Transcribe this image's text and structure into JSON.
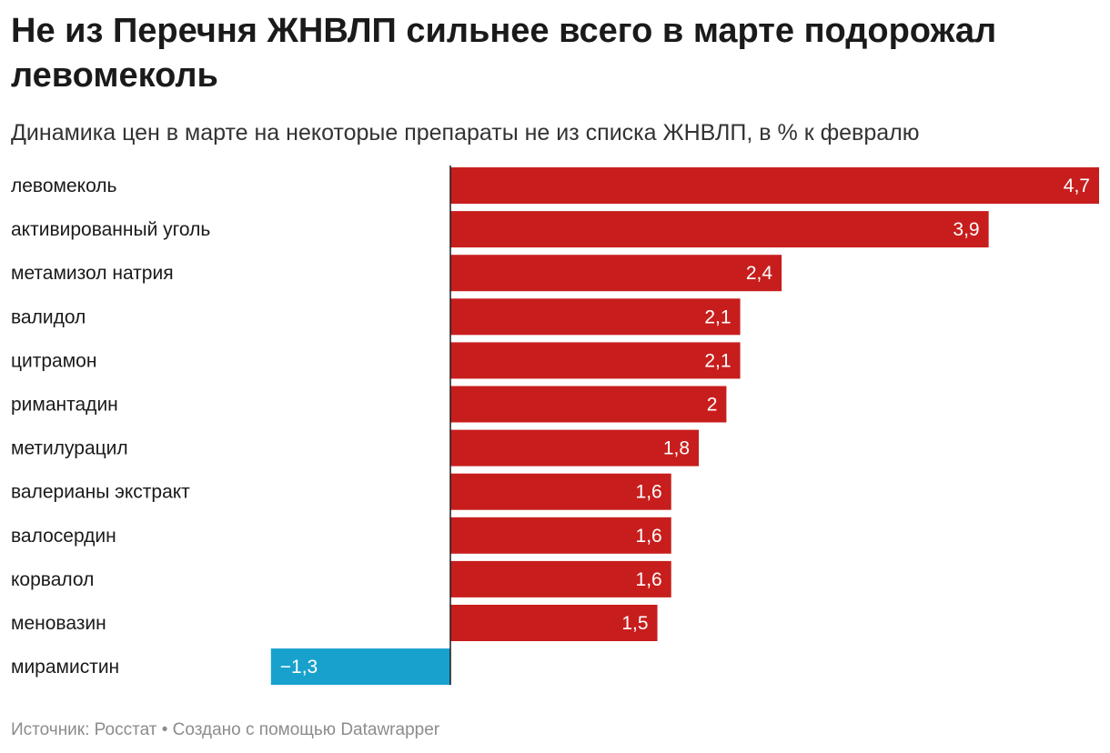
{
  "header": {
    "title": "Не из Перечня ЖНВЛП сильнее всего в марте подорожал левомеколь",
    "subtitle": "Динамика цен в марте на некоторые препараты не из списка ЖНВЛП, в % к февралю"
  },
  "footer": {
    "source": "Источник: Росстат",
    "separator": " • ",
    "credit": "Создано с помощью Datawrapper"
  },
  "colors": {
    "positive": "#c71e1d",
    "negative": "#18a1cd",
    "axis": "#1a1a1a",
    "label": "#1a1a1a",
    "value_label": "#ffffff"
  },
  "chart_data": {
    "type": "bar",
    "orientation": "horizontal",
    "categories": [
      "левомеколь",
      "активированный уголь",
      "метамизол натрия",
      "валидол",
      "цитрамон",
      "римантадин",
      "метилурацил",
      "валерианы экстракт",
      "валосердин",
      "корвалол",
      "меновазин",
      "мирамистин"
    ],
    "values": [
      4.7,
      3.9,
      2.4,
      2.1,
      2.1,
      2,
      1.8,
      1.6,
      1.6,
      1.6,
      1.5,
      -1.3
    ],
    "value_labels": [
      "4,7",
      "3,9",
      "2,4",
      "2,1",
      "2,1",
      "2",
      "1,8",
      "1,6",
      "1,6",
      "1,6",
      "1,5",
      "−1,3"
    ],
    "title": "Не из Перечня ЖНВЛП сильнее всего в марте подорожал левомеколь",
    "subtitle": "Динамика цен в марте на некоторые препараты не из списка ЖНВЛП, в % к февралю",
    "xlabel": "",
    "ylabel": "",
    "xlim": [
      -1.3,
      4.7
    ],
    "grid": false,
    "legend": "none"
  }
}
